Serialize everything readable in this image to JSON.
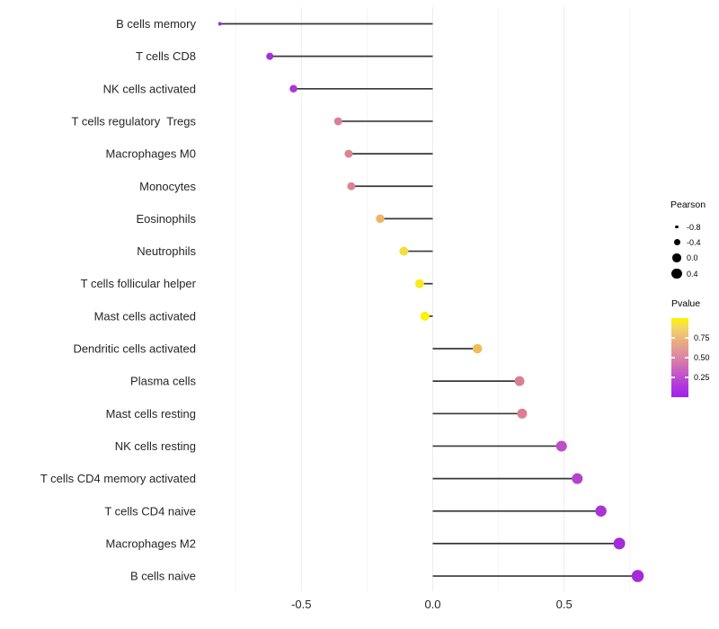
{
  "chart_data": {
    "type": "lollipop",
    "orientation": "horizontal",
    "title": "",
    "xlabel": "",
    "ylabel": "",
    "x_tick_labels": [
      "-0.5",
      "0.0",
      "0.5"
    ],
    "x_tick_values": [
      -0.5,
      0.0,
      0.5
    ],
    "x_minor_tick_values": [
      -0.75,
      -0.25,
      0.25,
      0.75
    ],
    "xlim": [
      -0.86,
      0.85
    ],
    "grid": "vertical-only",
    "stem_color": "#383838",
    "categories": [
      "B cells memory",
      "T cells CD8",
      "NK cells activated",
      "T cells regulatory  Tregs",
      "Macrophages M0",
      "Monocytes",
      "Eosinophils",
      "Neutrophils",
      "T cells follicular helper",
      "Mast cells activated",
      "Dendritic cells activated",
      "Plasma cells",
      "Mast cells resting",
      "NK cells resting",
      "T cells CD4 memory activated",
      "T cells CD4 naive",
      "Macrophages M2",
      "B cells naive"
    ],
    "points": [
      {
        "label": "B cells memory",
        "pearson": -0.81,
        "dot_color": "#9632DE",
        "dot_diameter": 4
      },
      {
        "label": "T cells CD8",
        "pearson": -0.62,
        "dot_color": "#A52FD8",
        "dot_diameter": 8
      },
      {
        "label": "NK cells activated",
        "pearson": -0.53,
        "dot_color": "#AB38D2",
        "dot_diameter": 8.5
      },
      {
        "label": "T cells regulatory  Tregs",
        "pearson": -0.36,
        "dot_color": "#DA7F99",
        "dot_diameter": 9
      },
      {
        "label": "Macrophages M0",
        "pearson": -0.32,
        "dot_color": "#DD8490",
        "dot_diameter": 9
      },
      {
        "label": "Monocytes",
        "pearson": -0.31,
        "dot_color": "#DD8490",
        "dot_diameter": 9
      },
      {
        "label": "Eosinophils",
        "pearson": -0.2,
        "dot_color": "#EFB36A",
        "dot_diameter": 9.5
      },
      {
        "label": "Neutrophils",
        "pearson": -0.11,
        "dot_color": "#F0DF3E",
        "dot_diameter": 10
      },
      {
        "label": "T cells follicular helper",
        "pearson": -0.05,
        "dot_color": "#F6EB1C",
        "dot_diameter": 10
      },
      {
        "label": "Mast cells activated",
        "pearson": -0.03,
        "dot_color": "#FAF303",
        "dot_diameter": 10
      },
      {
        "label": "Dendritic cells activated",
        "pearson": 0.17,
        "dot_color": "#F0BC55",
        "dot_diameter": 10.5
      },
      {
        "label": "Plasma cells",
        "pearson": 0.33,
        "dot_color": "#DA7E96",
        "dot_diameter": 11
      },
      {
        "label": "Mast cells resting",
        "pearson": 0.34,
        "dot_color": "#DA8092",
        "dot_diameter": 11
      },
      {
        "label": "NK cells resting",
        "pearson": 0.49,
        "dot_color": "#BE4EC5",
        "dot_diameter": 12
      },
      {
        "label": "T cells CD4 memory activated",
        "pearson": 0.55,
        "dot_color": "#B441CC",
        "dot_diameter": 12
      },
      {
        "label": "T cells CD4 naive",
        "pearson": 0.64,
        "dot_color": "#A934D4",
        "dot_diameter": 12.5
      },
      {
        "label": "Macrophages M2",
        "pearson": 0.71,
        "dot_color": "#A12CD8",
        "dot_diameter": 13
      },
      {
        "label": "B cells naive",
        "pearson": 0.78,
        "dot_color": "#A62BD8",
        "dot_diameter": 13.5
      }
    ],
    "legend_pearson": {
      "title": "Pearson",
      "dot_color": "#000000",
      "entries": [
        {
          "label": "-0.8",
          "diameter": 3.5
        },
        {
          "label": "-0.4",
          "diameter": 7
        },
        {
          "label": "0.0",
          "diameter": 9.5
        },
        {
          "label": "0.4",
          "diameter": 11.5
        }
      ]
    },
    "legend_pvalue": {
      "title": "Pvalue",
      "tick_labels": [
        "0.75",
        "0.50",
        "0.25"
      ],
      "tick_positions_pct": [
        25,
        50,
        75
      ],
      "gradient_top_to_bottom": [
        {
          "pos": 0,
          "color": "#FCF400"
        },
        {
          "pos": 12,
          "color": "#F3D765"
        },
        {
          "pos": 27,
          "color": "#EBB37C"
        },
        {
          "pos": 42,
          "color": "#E1939B"
        },
        {
          "pos": 56,
          "color": "#D678AD"
        },
        {
          "pos": 70,
          "color": "#C558C5"
        },
        {
          "pos": 85,
          "color": "#B038DA"
        },
        {
          "pos": 100,
          "color": "#A021EF"
        }
      ]
    },
    "colors": {
      "background": "#FFFFFF",
      "grid_major": "#ECECEC",
      "grid_minor": "#F5F5F5",
      "axis_text": "#262626"
    }
  }
}
